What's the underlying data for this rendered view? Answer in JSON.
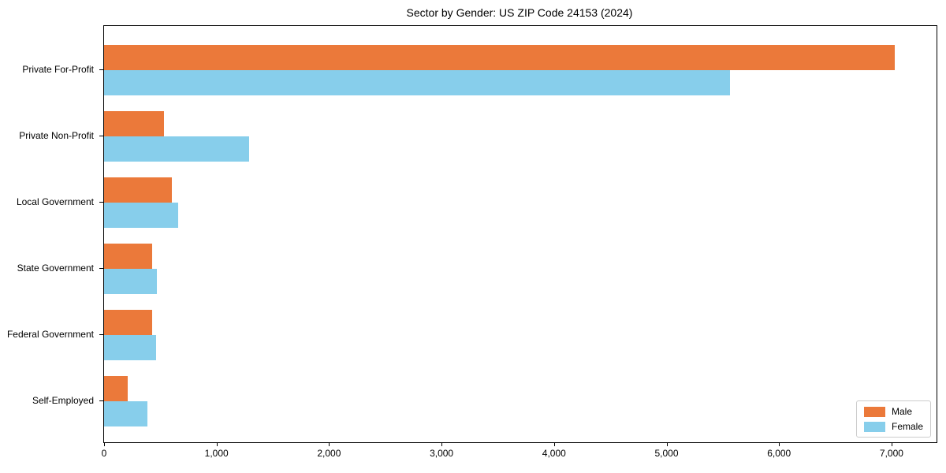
{
  "chart_data": {
    "type": "bar",
    "orientation": "horizontal",
    "title": "Sector by Gender: US ZIP Code 24153 (2024)",
    "categories": [
      "Private For-Profit",
      "Private Non-Profit",
      "Local Government",
      "State Government",
      "Federal Government",
      "Self-Employed"
    ],
    "series": [
      {
        "name": "Male",
        "color": "#eb793a",
        "values": [
          7030,
          535,
          605,
          425,
          430,
          210
        ]
      },
      {
        "name": "Female",
        "color": "#87ceeb",
        "values": [
          5565,
          1290,
          660,
          470,
          460,
          385
        ]
      }
    ],
    "xlim": [
      0,
      7400
    ],
    "x_ticks": [
      0,
      1000,
      2000,
      3000,
      4000,
      5000,
      6000,
      7000
    ],
    "x_tick_labels": [
      "0",
      "1,000",
      "2,000",
      "3,000",
      "4,000",
      "5,000",
      "6,000",
      "7,000"
    ],
    "xlabel": "",
    "ylabel": "",
    "legend_position": "lower right",
    "grid": false,
    "background_color": "#ffffff",
    "spine_color": "#000000"
  }
}
